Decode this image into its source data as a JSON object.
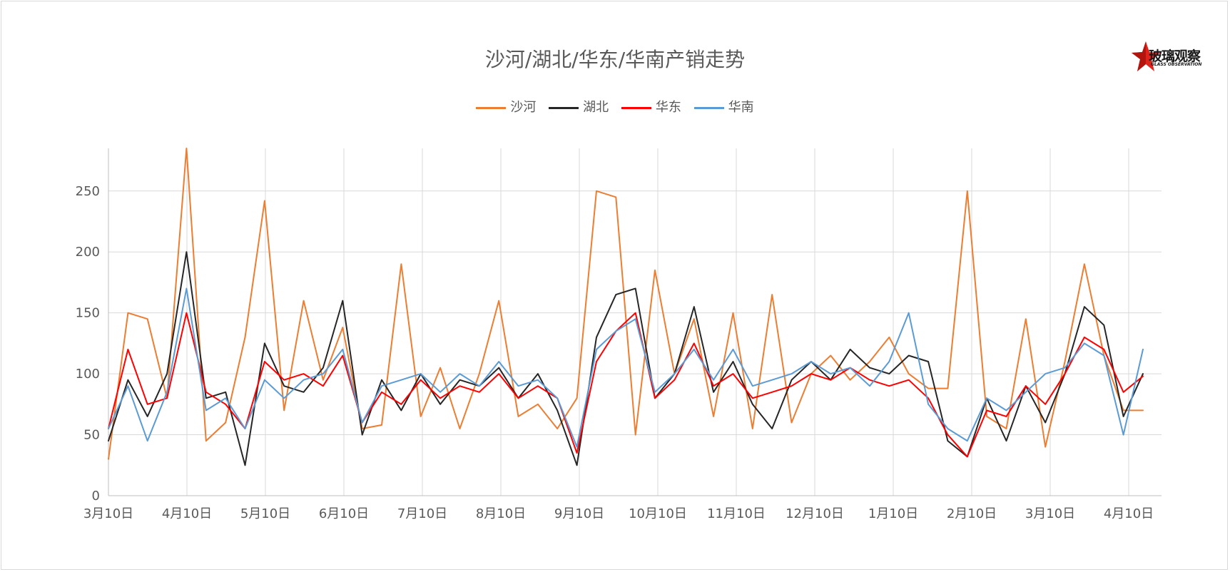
{
  "logo": {
    "main_text": "玻璃观察",
    "sub_text": "GLASS OBSERVATION",
    "accent_color": "#e0241b"
  },
  "chart_data": {
    "type": "line",
    "title": "沙河/湖北/华东/华南产销走势",
    "legend_position": "top",
    "grid": true,
    "ylim": [
      0,
      285
    ],
    "y_ticks": [
      0,
      50,
      100,
      150,
      200,
      250
    ],
    "x_ticks": [
      "3月10日",
      "4月10日",
      "5月10日",
      "6月10日",
      "7月10日",
      "8月10日",
      "9月10日",
      "10月10日",
      "11月10日",
      "12月10日",
      "1月10日",
      "2月10日",
      "3月10日",
      "4月10日"
    ],
    "x": [
      "3月10日",
      "3月17日",
      "3月24日",
      "3月31日",
      "4月10日",
      "4月17日",
      "4月24日",
      "5月1日",
      "5月10日",
      "5月17日",
      "5月24日",
      "5月31日",
      "6月10日",
      "6月17日",
      "6月24日",
      "7月1日",
      "7月10日",
      "7月17日",
      "7月24日",
      "7月31日",
      "8月10日",
      "8月17日",
      "8月24日",
      "8月31日",
      "9月10日",
      "9月17日",
      "9月24日",
      "10月1日",
      "10月10日",
      "10月17日",
      "10月24日",
      "10月31日",
      "11月10日",
      "11月17日",
      "11月24日",
      "12月1日",
      "12月10日",
      "12月17日",
      "12月24日",
      "12月31日",
      "1月10日",
      "1月17日",
      "1月24日",
      "1月31日",
      "2月10日",
      "2月17日",
      "2月24日",
      "3月3日",
      "3月10日",
      "3月17日",
      "3月24日",
      "3月31日",
      "4月10日",
      "4月17日"
    ],
    "series": [
      {
        "name": "沙河",
        "color": "#ed7d31",
        "values": [
          30,
          150,
          145,
          80,
          285,
          45,
          60,
          130,
          242,
          70,
          160,
          95,
          138,
          55,
          58,
          190,
          65,
          105,
          55,
          100,
          160,
          65,
          75,
          55,
          80,
          250,
          245,
          50,
          185,
          100,
          145,
          65,
          150,
          55,
          165,
          60,
          100,
          115,
          95,
          110,
          130,
          100,
          88,
          88,
          250,
          65,
          55,
          145,
          40,
          110,
          190,
          115,
          70,
          70
        ]
      },
      {
        "name": "湖北",
        "color": "#262626",
        "values": [
          45,
          95,
          65,
          100,
          200,
          80,
          85,
          25,
          125,
          90,
          85,
          105,
          160,
          50,
          95,
          70,
          100,
          75,
          95,
          90,
          105,
          80,
          100,
          70,
          25,
          130,
          165,
          170,
          80,
          100,
          155,
          85,
          110,
          75,
          55,
          95,
          110,
          95,
          120,
          105,
          100,
          115,
          110,
          45,
          32,
          80,
          45,
          90,
          60,
          100,
          155,
          140,
          65,
          100
        ]
      },
      {
        "name": "华东",
        "color": "#ff0000",
        "values": [
          55,
          120,
          75,
          80,
          150,
          85,
          75,
          55,
          110,
          95,
          100,
          90,
          115,
          60,
          85,
          75,
          95,
          80,
          90,
          85,
          100,
          80,
          90,
          80,
          35,
          110,
          135,
          150,
          80,
          95,
          125,
          90,
          100,
          80,
          85,
          90,
          100,
          95,
          105,
          95,
          90,
          95,
          80,
          50,
          32,
          70,
          65,
          90,
          75,
          100,
          130,
          120,
          85,
          98
        ]
      },
      {
        "name": "华南",
        "color": "#5b9bd5",
        "values": [
          55,
          90,
          45,
          85,
          170,
          70,
          80,
          55,
          95,
          80,
          95,
          100,
          120,
          60,
          90,
          95,
          100,
          85,
          100,
          90,
          110,
          90,
          95,
          80,
          40,
          120,
          135,
          145,
          85,
          100,
          120,
          95,
          120,
          90,
          95,
          100,
          110,
          100,
          105,
          90,
          110,
          150,
          75,
          55,
          45,
          80,
          70,
          85,
          100,
          105,
          125,
          115,
          50,
          120
        ]
      }
    ]
  }
}
